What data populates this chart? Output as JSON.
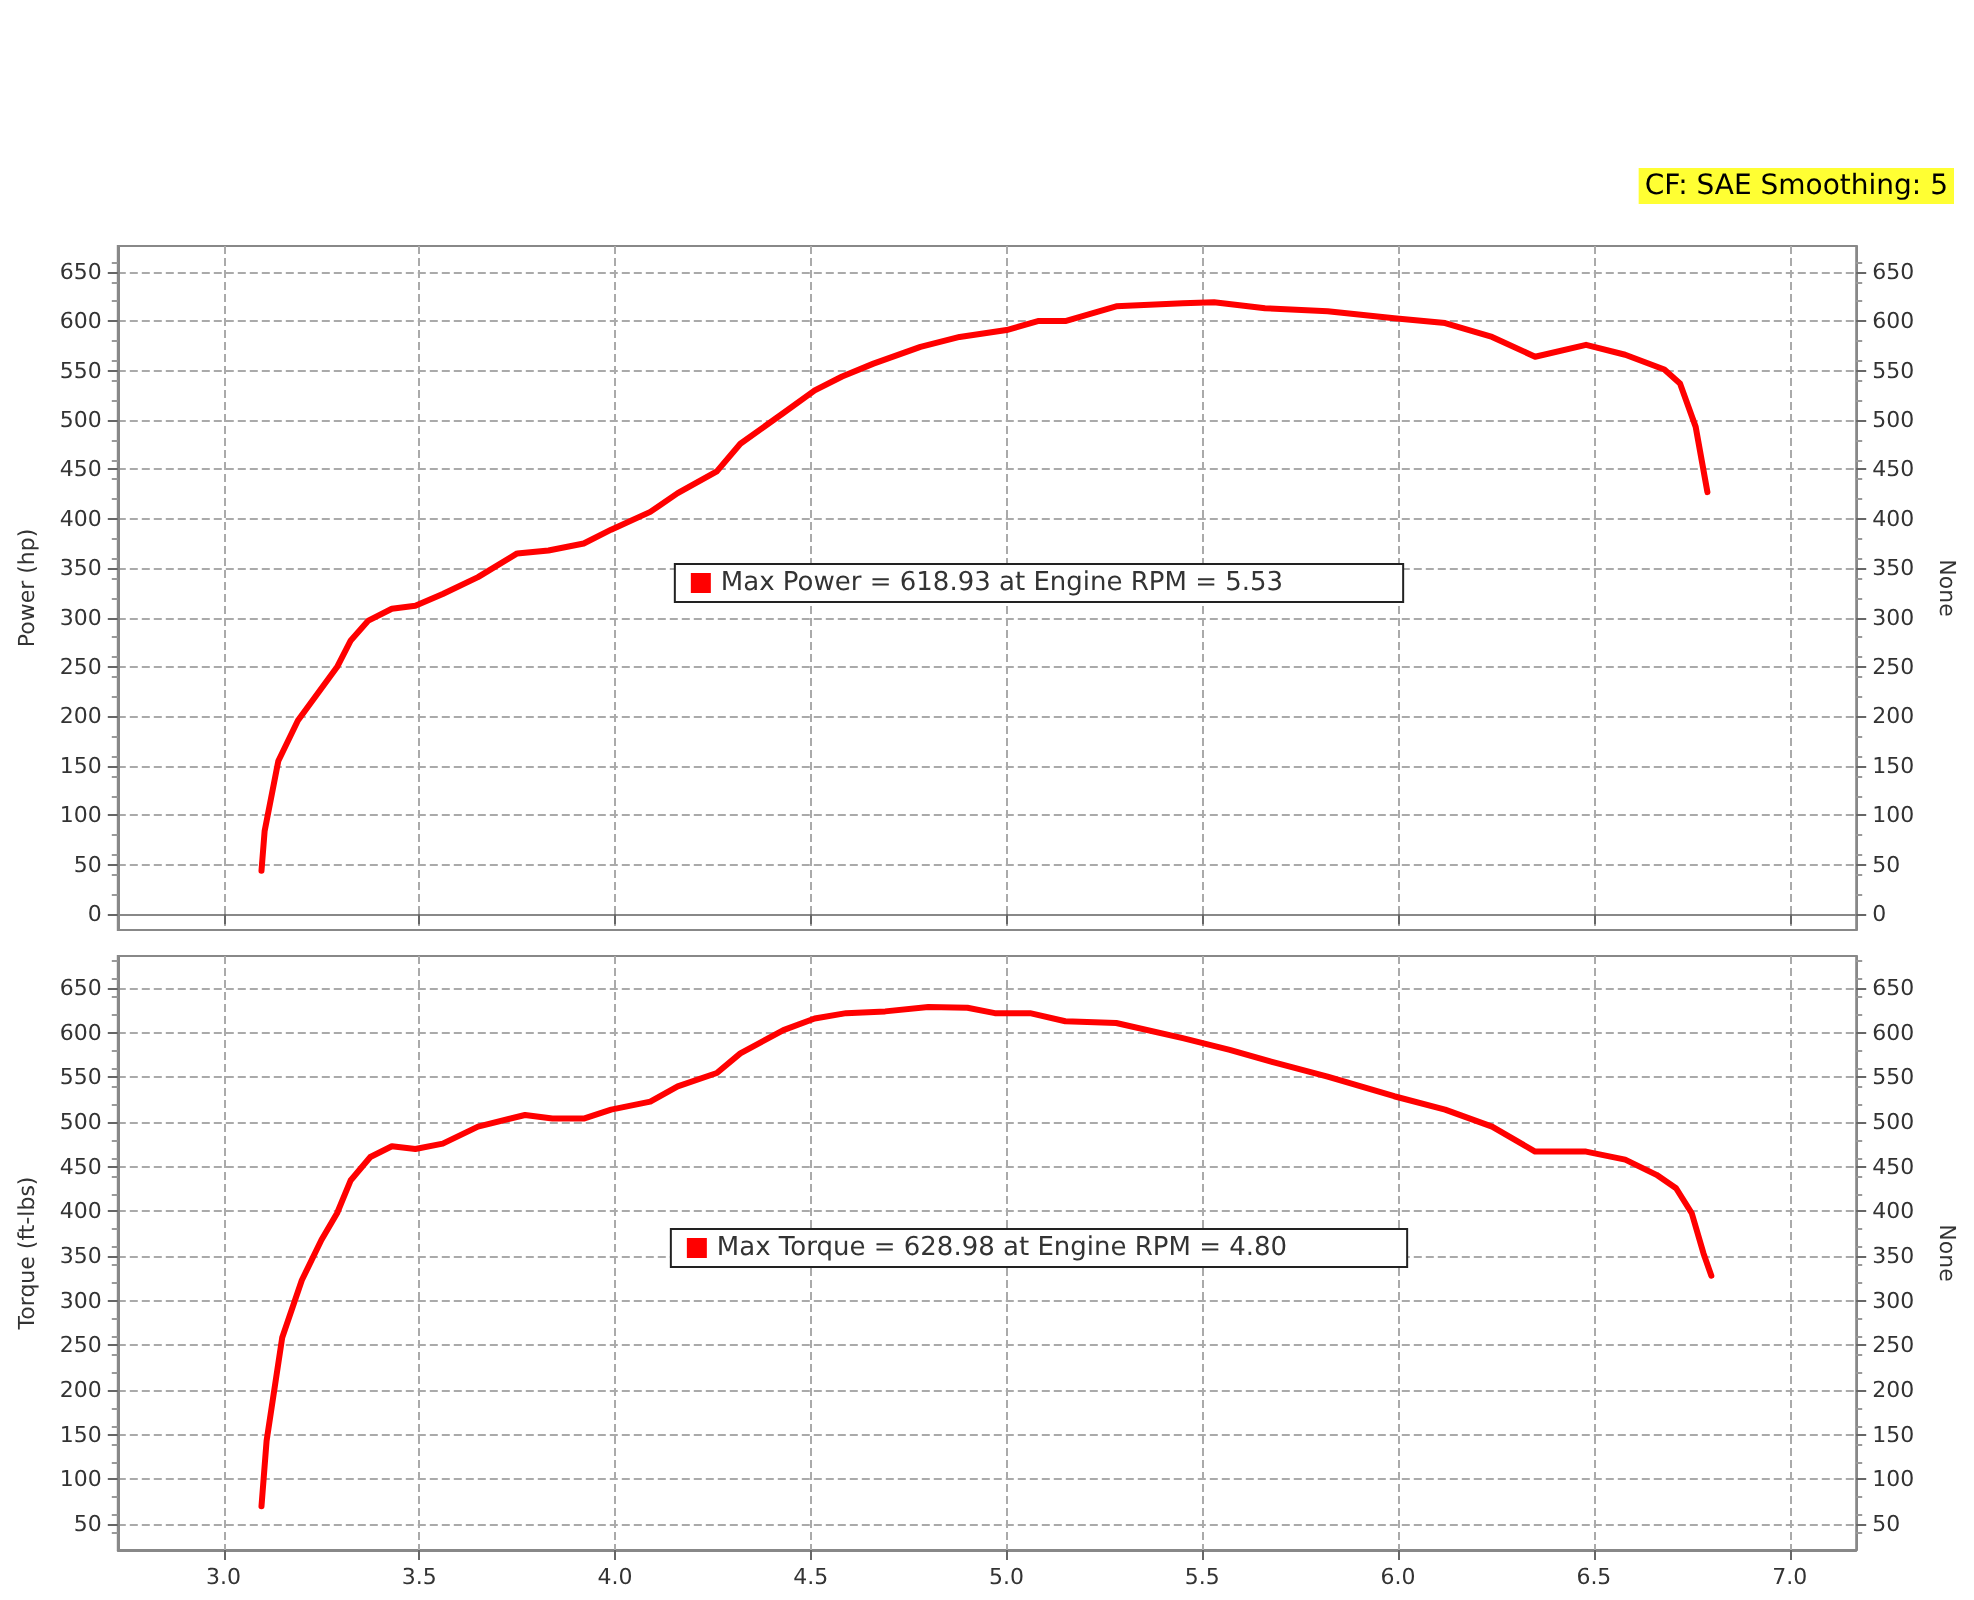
{
  "chart_data": [
    {
      "type": "line",
      "ylabel": "Power (hp)",
      "y2label": "None",
      "annotations": [
        "CF: SAE Smoothing: 5"
      ],
      "xlim": [
        2.73,
        7.17
      ],
      "xticks": [
        3,
        3.5,
        4,
        4.5,
        5,
        5.5,
        6,
        6.5,
        7
      ],
      "ylim": [
        -16,
        676
      ],
      "yticks": [
        0,
        50,
        100,
        150,
        200,
        250,
        300,
        350,
        400,
        450,
        500,
        550,
        600,
        650
      ],
      "y2lim": [
        -16,
        676
      ],
      "y2ticks": [
        0,
        50,
        100,
        150,
        200,
        250,
        300,
        350,
        400,
        450,
        500,
        550,
        600,
        650
      ],
      "tick_labels": "y",
      "grid": true,
      "legend": "center",
      "marker": "none",
      "line_style": "solid",
      "series": [
        {
          "name": "Max Power = 618.93 at Engine RPM = 5.53",
          "color": "#ff0000",
          "x": [
            3.097,
            3.105,
            3.14,
            3.19,
            3.24,
            3.29,
            3.325,
            3.37,
            3.43,
            3.49,
            3.56,
            3.65,
            3.75,
            3.83,
            3.92,
            3.99,
            4.09,
            4.16,
            4.26,
            4.32,
            4.43,
            4.51,
            4.58,
            4.66,
            4.78,
            4.88,
            5.0,
            5.08,
            5.15,
            5.28,
            5.45,
            5.53,
            5.66,
            5.82,
            5.99,
            6.12,
            6.24,
            6.35,
            6.48,
            6.58,
            6.68,
            6.72,
            6.76,
            6.79
          ],
          "values": [
            44,
            84,
            155,
            196,
            223,
            250,
            277,
            297,
            309,
            312,
            324,
            341,
            365,
            368,
            375,
            389,
            407,
            426,
            448,
            476,
            507,
            530,
            544,
            557,
            574,
            584,
            591,
            600,
            600,
            615,
            618,
            619,
            613,
            610,
            603,
            598,
            584,
            564,
            576,
            566,
            551,
            537,
            493,
            427
          ]
        }
      ]
    },
    {
      "type": "line",
      "ylabel": "Torque (ft-lbs)",
      "y2label": "None",
      "xlim": [
        2.73,
        7.17
      ],
      "xticks": [
        {
          "value": 3,
          "label": "3.0"
        },
        {
          "value": 3.5,
          "label": "3.5"
        },
        {
          "value": 4,
          "label": "4.0"
        },
        {
          "value": 4.5,
          "label": "4.5"
        },
        {
          "value": 5,
          "label": "5.0"
        },
        {
          "value": 5.5,
          "label": "5.5"
        },
        {
          "value": 6,
          "label": "6.0"
        },
        {
          "value": 6.5,
          "label": "6.5"
        },
        {
          "value": 7,
          "label": "7.0"
        }
      ],
      "ylim": [
        21,
        686
      ],
      "yticks": [
        50,
        100,
        150,
        200,
        250,
        300,
        350,
        400,
        450,
        500,
        550,
        600,
        650
      ],
      "y2lim": [
        21,
        686
      ],
      "y2ticks": [
        50,
        100,
        150,
        200,
        250,
        300,
        350,
        400,
        450,
        500,
        550,
        600,
        650
      ],
      "grid": true,
      "legend": "center",
      "marker": "none",
      "line_style": "solid",
      "series": [
        {
          "name": "Max Torque = 628.98 at Engine RPM = 4.80",
          "color": "#ff0000",
          "x": [
            3.097,
            3.11,
            3.15,
            3.2,
            3.25,
            3.29,
            3.325,
            3.375,
            3.43,
            3.49,
            3.56,
            3.65,
            3.77,
            3.84,
            3.92,
            3.99,
            4.09,
            4.16,
            4.26,
            4.32,
            4.43,
            4.51,
            4.59,
            4.69,
            4.8,
            4.9,
            4.97,
            5.06,
            5.15,
            5.28,
            5.45,
            5.57,
            5.69,
            5.82,
            5.99,
            6.12,
            6.24,
            6.35,
            6.48,
            6.58,
            6.66,
            6.71,
            6.75,
            6.78,
            6.8
          ],
          "values": [
            70,
            143,
            259,
            323,
            368,
            398,
            435,
            461,
            473,
            470,
            476,
            495,
            508,
            504,
            504,
            514,
            523,
            540,
            555,
            577,
            603,
            616,
            622,
            624,
            629,
            628,
            622,
            622,
            613,
            611,
            594,
            581,
            566,
            551,
            529,
            514,
            495,
            467,
            467,
            458,
            441,
            426,
            398,
            353,
            328
          ]
        }
      ]
    }
  ]
}
